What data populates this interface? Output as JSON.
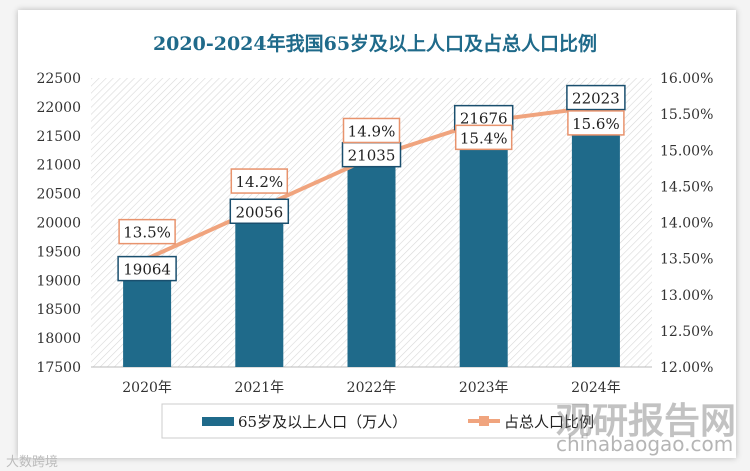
{
  "chart_data": {
    "type": "bar+line",
    "title": "2020-2024年我国65岁及以上人口及占总人口比例",
    "categories": [
      "2020年",
      "2021年",
      "2022年",
      "2023年",
      "2024年"
    ],
    "series": [
      {
        "name": "65岁及以上人口（万人）",
        "type": "bar",
        "axis": "left",
        "values": [
          19064,
          20056,
          21035,
          21676,
          22023
        ],
        "labels": [
          "19064",
          "20056",
          "21035",
          "21676",
          "22023"
        ],
        "color": "#1f6a8a"
      },
      {
        "name": "占总人口比例",
        "type": "line",
        "axis": "right",
        "values": [
          13.5,
          14.2,
          14.9,
          15.4,
          15.6
        ],
        "labels": [
          "13.5%",
          "14.2%",
          "14.9%",
          "15.4%",
          "15.6%"
        ],
        "color": "#f0a47e"
      }
    ],
    "left_axis": {
      "ylim": [
        17500,
        22500
      ],
      "ticks": [
        "17500",
        "18000",
        "18500",
        "19000",
        "19500",
        "20000",
        "20500",
        "21000",
        "21500",
        "22000",
        "22500"
      ]
    },
    "right_axis": {
      "ylim": [
        12,
        16
      ],
      "ticks": [
        "12.00%",
        "12.50%",
        "13.00%",
        "13.50%",
        "14.00%",
        "14.50%",
        "15.00%",
        "15.50%",
        "16.00%"
      ]
    },
    "legend": "bottom",
    "grid": false,
    "background": "diagonal-hatch"
  },
  "watermarks": {
    "brand": "观研报告网",
    "url": "chinabaogao.com",
    "corner": "大数跨境"
  }
}
